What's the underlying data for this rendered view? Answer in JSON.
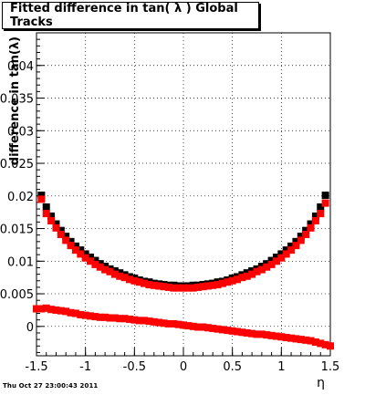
{
  "chart_data": {
    "type": "scatter",
    "title": "Fitted difference in tan( λ )  Global Tracks",
    "xlabel": "η",
    "ylabel": "difference in tan(λ)",
    "xlim": [
      -1.5,
      1.5
    ],
    "ylim": [
      -0.0045,
      0.045
    ],
    "x_ticks": [
      -1.5,
      -1,
      -0.5,
      0,
      0.5,
      1,
      1.5
    ],
    "y_ticks": [
      0,
      0.005,
      0.01,
      0.015,
      0.02,
      0.025,
      0.03,
      0.035,
      0.04
    ],
    "x_tick_labels": [
      "-1.5",
      "-1",
      "-0.5",
      "0",
      "0.5",
      "1",
      "1.5"
    ],
    "y_tick_labels": [
      "0",
      "0.005",
      "0.01",
      "0.015",
      "0.02",
      "0.025",
      "0.03",
      "0.035",
      "0.04"
    ],
    "grid": true,
    "series": [
      {
        "color": "#000000",
        "marker": "square",
        "x": [
          -1.45,
          -1.4,
          -1.35,
          -1.3,
          -1.25,
          -1.2,
          -1.15,
          -1.1,
          -1.05,
          -1.0,
          -0.95,
          -0.9,
          -0.85,
          -0.8,
          -0.75,
          -0.7,
          -0.65,
          -0.6,
          -0.55,
          -0.5,
          -0.45,
          -0.4,
          -0.35,
          -0.3,
          -0.25,
          -0.2,
          -0.15,
          -0.1,
          -0.05,
          0.0,
          0.05,
          0.1,
          0.15,
          0.2,
          0.25,
          0.3,
          0.35,
          0.4,
          0.45,
          0.5,
          0.55,
          0.6,
          0.65,
          0.7,
          0.75,
          0.8,
          0.85,
          0.9,
          0.95,
          1.0,
          1.05,
          1.1,
          1.15,
          1.2,
          1.25,
          1.3,
          1.35,
          1.4,
          1.45
        ],
        "y": [
          0.0201,
          0.0183,
          0.0169,
          0.0157,
          0.0147,
          0.0138,
          0.013,
          0.0123,
          0.0117,
          0.0111,
          0.0106,
          0.0101,
          0.0096,
          0.0092,
          0.0088,
          0.0085,
          0.0082,
          0.0079,
          0.0076,
          0.0074,
          0.0071,
          0.0069,
          0.0068,
          0.0066,
          0.0065,
          0.0064,
          0.0063,
          0.0063,
          0.0062,
          0.0062,
          0.0062,
          0.0063,
          0.0063,
          0.0064,
          0.0065,
          0.0066,
          0.0068,
          0.0069,
          0.0071,
          0.0074,
          0.0076,
          0.0079,
          0.0082,
          0.0085,
          0.0088,
          0.0092,
          0.0096,
          0.0101,
          0.0106,
          0.0111,
          0.0117,
          0.0123,
          0.013,
          0.0138,
          0.0147,
          0.0157,
          0.0169,
          0.0183,
          0.0201
        ]
      },
      {
        "color": "#ff0000",
        "marker": "square",
        "x": [
          -1.45,
          -1.4,
          -1.35,
          -1.3,
          -1.25,
          -1.2,
          -1.15,
          -1.1,
          -1.05,
          -1.0,
          -0.95,
          -0.9,
          -0.85,
          -0.8,
          -0.75,
          -0.7,
          -0.65,
          -0.6,
          -0.55,
          -0.5,
          -0.45,
          -0.4,
          -0.35,
          -0.3,
          -0.25,
          -0.2,
          -0.15,
          -0.1,
          -0.05,
          0.0,
          0.05,
          0.1,
          0.15,
          0.2,
          0.25,
          0.3,
          0.35,
          0.4,
          0.45,
          0.5,
          0.55,
          0.6,
          0.65,
          0.7,
          0.75,
          0.8,
          0.85,
          0.9,
          0.95,
          1.0,
          1.05,
          1.1,
          1.15,
          1.2,
          1.25,
          1.3,
          1.35,
          1.4,
          1.45
        ],
        "y": [
          0.0195,
          0.0173,
          0.0162,
          0.0151,
          0.0141,
          0.0132,
          0.0124,
          0.0117,
          0.0111,
          0.0105,
          0.01,
          0.0095,
          0.0091,
          0.0087,
          0.0084,
          0.008,
          0.0077,
          0.0075,
          0.0072,
          0.007,
          0.0068,
          0.0066,
          0.0064,
          0.0063,
          0.0062,
          0.0061,
          0.006,
          0.0059,
          0.0059,
          0.0059,
          0.0059,
          0.0059,
          0.006,
          0.0061,
          0.0062,
          0.0063,
          0.0064,
          0.0066,
          0.0068,
          0.007,
          0.0072,
          0.0075,
          0.0077,
          0.008,
          0.0084,
          0.0087,
          0.0091,
          0.0095,
          0.01,
          0.0105,
          0.0111,
          0.0117,
          0.0124,
          0.0132,
          0.0141,
          0.0151,
          0.0162,
          0.0173,
          0.0189
        ]
      },
      {
        "color": "#ff0000",
        "marker": "square",
        "x": [
          -1.5,
          -1.45,
          -1.4,
          -1.35,
          -1.3,
          -1.25,
          -1.2,
          -1.15,
          -1.1,
          -1.05,
          -1.0,
          -0.95,
          -0.9,
          -0.85,
          -0.8,
          -0.75,
          -0.7,
          -0.65,
          -0.6,
          -0.55,
          -0.5,
          -0.45,
          -0.4,
          -0.35,
          -0.3,
          -0.25,
          -0.2,
          -0.15,
          -0.1,
          -0.05,
          0.0,
          0.05,
          0.1,
          0.15,
          0.2,
          0.25,
          0.3,
          0.35,
          0.4,
          0.45,
          0.5,
          0.55,
          0.6,
          0.65,
          0.7,
          0.75,
          0.8,
          0.85,
          0.9,
          0.95,
          1.0,
          1.05,
          1.1,
          1.15,
          1.2,
          1.25,
          1.3,
          1.35,
          1.4,
          1.45,
          1.5
        ],
        "y": [
          0.0027,
          0.0027,
          0.0028,
          0.0026,
          0.0025,
          0.0024,
          0.0023,
          0.0021,
          0.002,
          0.0018,
          0.0017,
          0.0016,
          0.0015,
          0.0014,
          0.0014,
          0.0013,
          0.0013,
          0.0012,
          0.0012,
          0.0011,
          0.001,
          0.0009,
          0.0009,
          0.0008,
          0.0007,
          0.0006,
          0.0005,
          0.0004,
          0.0004,
          0.0003,
          0.0002,
          0.0001,
          0.0,
          -0.0001,
          -0.0001,
          -0.0002,
          -0.0003,
          -0.0004,
          -0.0005,
          -0.0006,
          -0.0007,
          -0.0008,
          -0.0009,
          -0.001,
          -0.0011,
          -0.0012,
          -0.0012,
          -0.0013,
          -0.0014,
          -0.0015,
          -0.0016,
          -0.0017,
          -0.0018,
          -0.0019,
          -0.002,
          -0.0021,
          -0.0022,
          -0.0024,
          -0.0026,
          -0.0028,
          -0.003
        ]
      }
    ]
  },
  "footer": {
    "timestamp": "Thu Oct 27 23:00:43 2011"
  }
}
